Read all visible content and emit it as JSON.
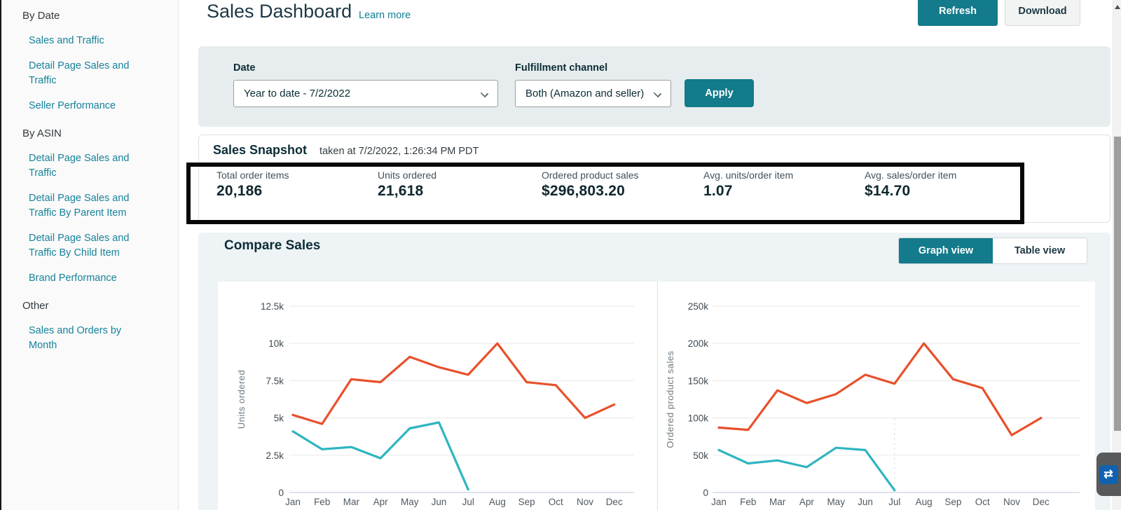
{
  "sidebar": {
    "sections": [
      {
        "header": "By Date",
        "items": [
          "Sales and Traffic",
          "Detail Page Sales and Traffic",
          "Seller Performance"
        ]
      },
      {
        "header": "By ASIN",
        "items": [
          "Detail Page Sales and Traffic",
          "Detail Page Sales and Traffic By Parent Item",
          "Detail Page Sales and Traffic By Child Item",
          "Brand Performance"
        ]
      },
      {
        "header": "Other",
        "items": [
          "Sales and Orders by Month"
        ]
      }
    ]
  },
  "header": {
    "title": "Sales Dashboard",
    "learn_more": "Learn more",
    "refresh_label": "Refresh",
    "download_label": "Download"
  },
  "filters": {
    "date_label": "Date",
    "date_value": "Year to date - 7/2/2022",
    "channel_label": "Fulfillment channel",
    "channel_value": "Both (Amazon and seller)",
    "apply_label": "Apply"
  },
  "snapshot": {
    "title": "Sales Snapshot",
    "taken_at": "taken at 7/2/2022, 1:26:34 PM PDT",
    "metrics": [
      {
        "label": "Total order items",
        "value": "20,186"
      },
      {
        "label": "Units ordered",
        "value": "21,618"
      },
      {
        "label": "Ordered product sales",
        "value": "$296,803.20"
      },
      {
        "label": "Avg. units/order item",
        "value": "1.07"
      },
      {
        "label": "Avg. sales/order item",
        "value": "$14.70"
      }
    ]
  },
  "compare": {
    "title": "Compare Sales",
    "graph_view_label": "Graph view",
    "table_view_label": "Table view"
  },
  "colors": {
    "accent_teal": "#137b8b",
    "link_teal": "#0d8197",
    "chart_red": "#e8502b",
    "chart_teal": "#2eb5c0",
    "filter_bg": "#e7edee",
    "compare_bg": "#eef3f6"
  },
  "chart_data": [
    {
      "type": "line",
      "title": "",
      "xlabel": "",
      "ylabel": "Units ordered",
      "x_categories": [
        "Jan",
        "Feb",
        "Mar",
        "Apr",
        "May",
        "Jun",
        "Jul",
        "Aug",
        "Sep",
        "Oct",
        "Nov",
        "Dec"
      ],
      "ylim": [
        0,
        12500
      ],
      "y_ticks": [
        0,
        2500,
        5000,
        7500,
        10000,
        12500
      ],
      "y_tick_labels": [
        "0",
        "2.5k",
        "5k",
        "7.5k",
        "10k",
        "12.5k"
      ],
      "grid": true,
      "legend": "none (below fold)",
      "series": [
        {
          "name": "red",
          "color": "#e8502b",
          "values": [
            5200,
            4600,
            7600,
            7400,
            9100,
            8400,
            7900,
            10000,
            7400,
            7200,
            5000,
            5900
          ]
        },
        {
          "name": "teal",
          "color": "#2eb5c0",
          "values": [
            4100,
            2900,
            3050,
            2300,
            4300,
            4700,
            200
          ]
        }
      ]
    },
    {
      "type": "line",
      "title": "",
      "xlabel": "",
      "ylabel": "Ordered product sales",
      "x_categories": [
        "Jan",
        "Feb",
        "Mar",
        "Apr",
        "May",
        "Jun",
        "Jul",
        "Aug",
        "Sep",
        "Oct",
        "Nov",
        "Dec"
      ],
      "ylim": [
        0,
        250000
      ],
      "y_ticks": [
        0,
        50000,
        100000,
        150000,
        200000,
        250000
      ],
      "y_tick_labels": [
        "0",
        "50k",
        "100k",
        "150k",
        "200k",
        "250k"
      ],
      "grid": true,
      "legend": "none (below fold)",
      "series": [
        {
          "name": "red",
          "color": "#e8502b",
          "values": [
            87000,
            84000,
            137000,
            120000,
            132000,
            158000,
            146000,
            200000,
            152000,
            140000,
            77000,
            100000
          ]
        },
        {
          "name": "teal",
          "color": "#2eb5c0",
          "values": [
            57000,
            39000,
            43000,
            34000,
            60000,
            57000,
            3000
          ]
        }
      ]
    }
  ]
}
